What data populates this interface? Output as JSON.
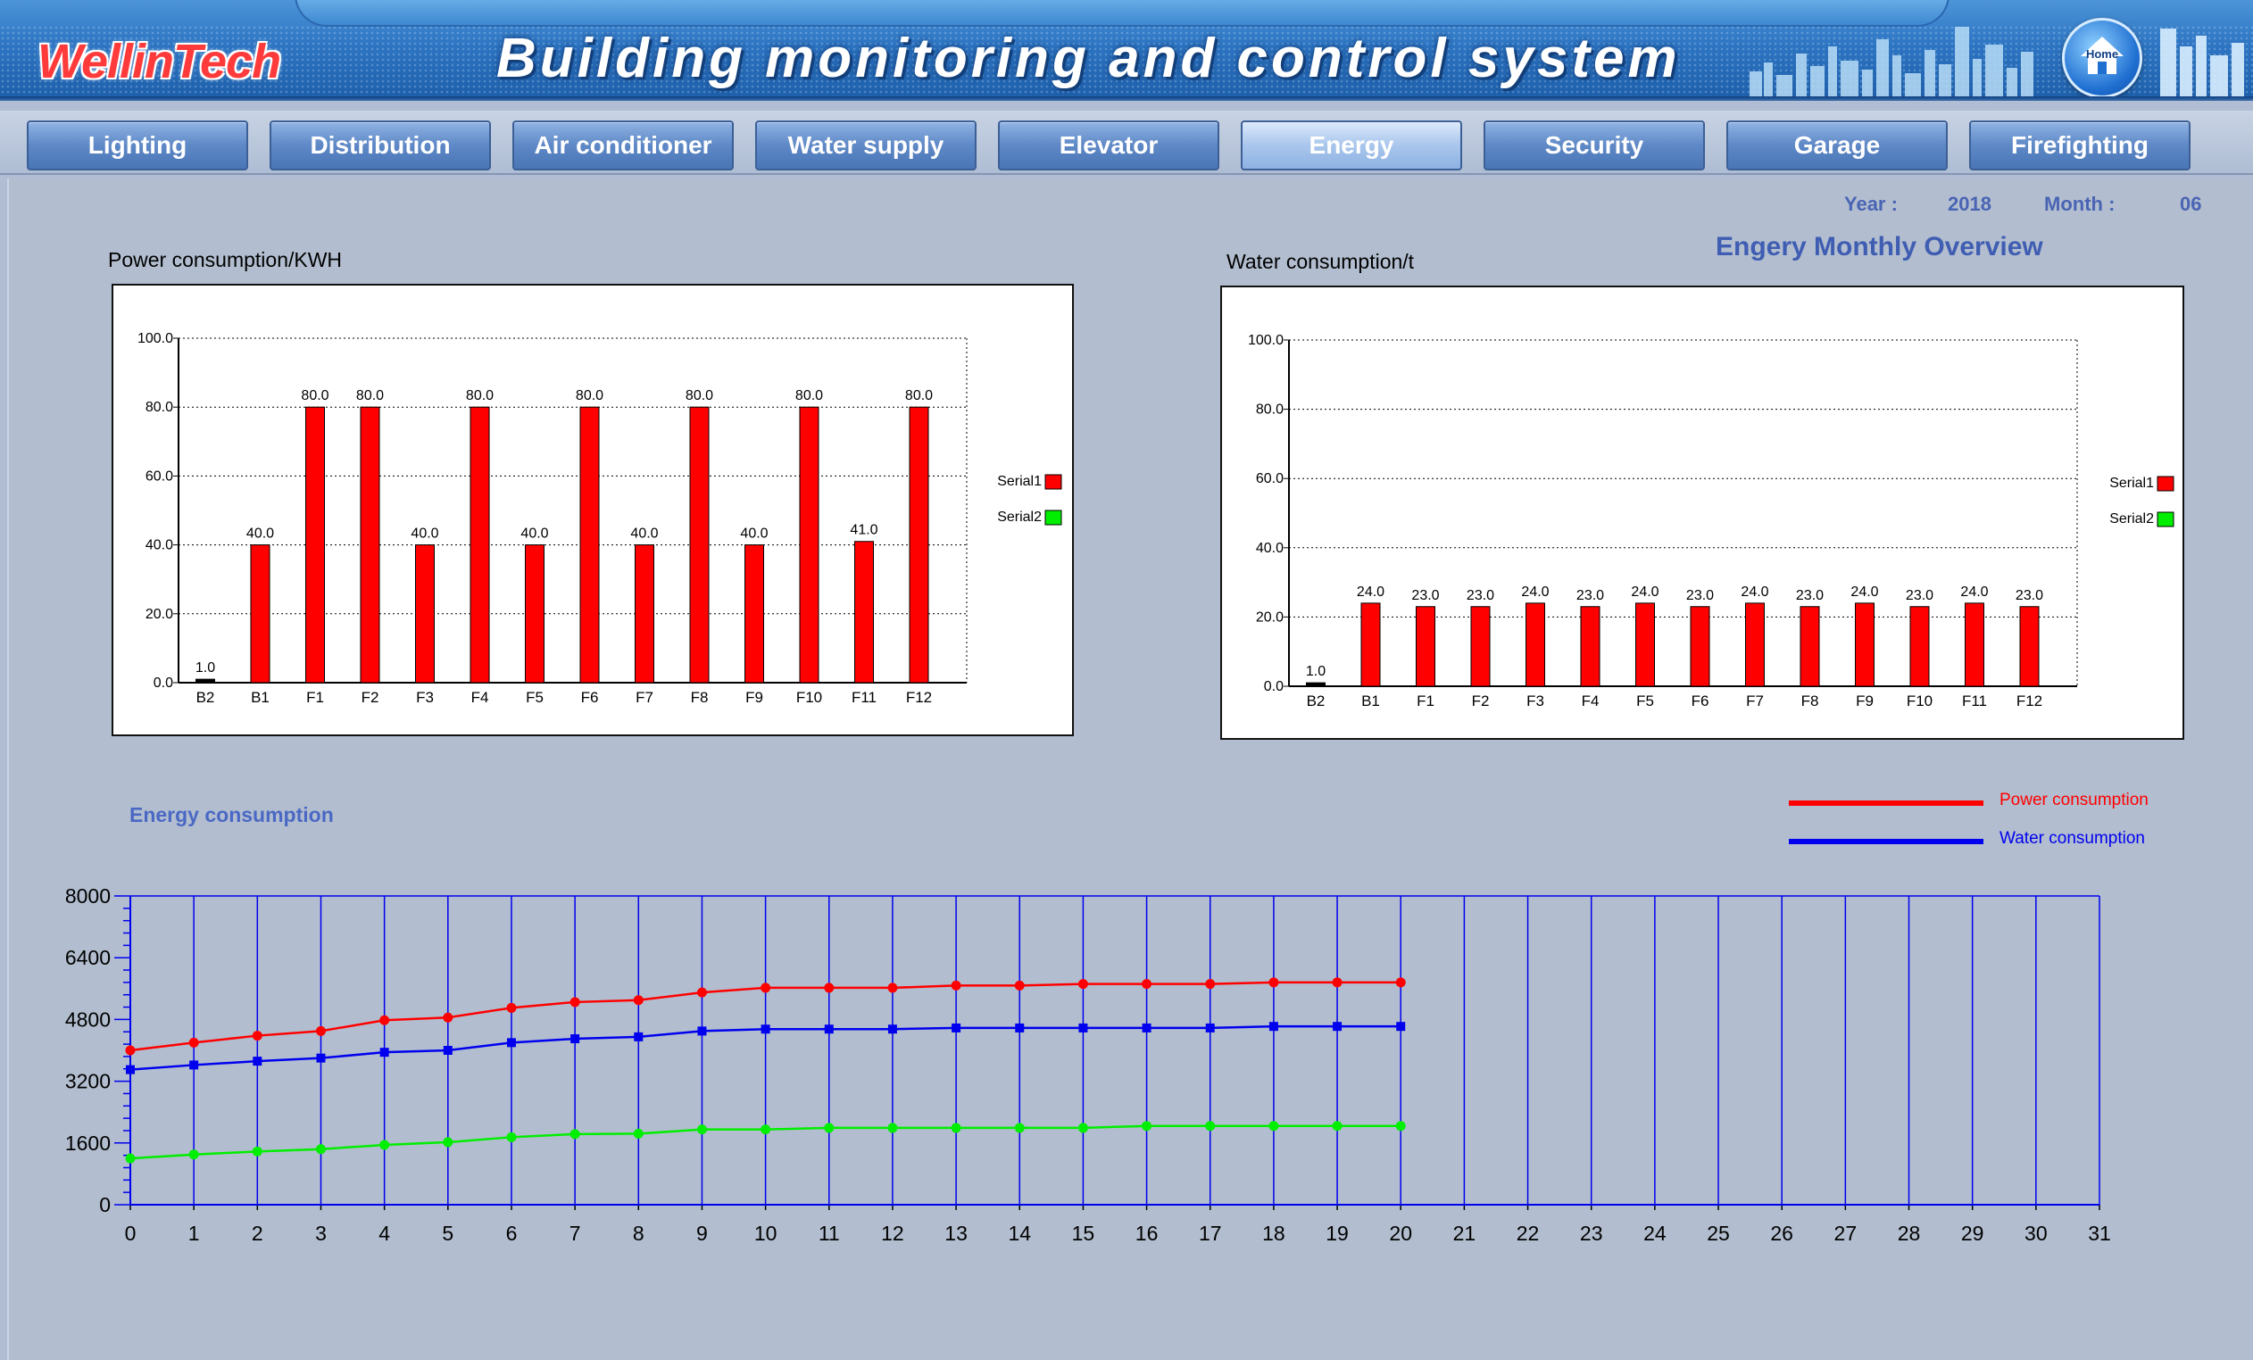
{
  "header": {
    "logo": "WellinTech",
    "title": "Building monitoring and control system",
    "home_label": "Home"
  },
  "nav": {
    "tabs": [
      {
        "label": "Lighting"
      },
      {
        "label": "Distribution"
      },
      {
        "label": "Air conditioner"
      },
      {
        "label": "Water supply"
      },
      {
        "label": "Elevator"
      },
      {
        "label": "Energy",
        "active": true
      },
      {
        "label": "Security"
      },
      {
        "label": "Garage"
      },
      {
        "label": "Firefighting"
      }
    ]
  },
  "meta": {
    "year_label": "Year :",
    "year_value": "2018",
    "month_label": "Month :",
    "month_value": "06"
  },
  "overview_title": "Engery Monthly Overview",
  "energy_title": "Energy consumption",
  "colors": {
    "series1": "#ff0000",
    "series2": "#00ee00",
    "water_line": "#0000ee",
    "accent_text": "#4a64b4"
  },
  "chart_data": [
    {
      "type": "bar",
      "title": "Power consumption/KWH",
      "categories": [
        "B2",
        "B1",
        "F1",
        "F2",
        "F3",
        "F4",
        "F5",
        "F6",
        "F7",
        "F8",
        "F9",
        "F10",
        "F11",
        "F12"
      ],
      "values": [
        1.0,
        40.0,
        80.0,
        80.0,
        40.0,
        80.0,
        40.0,
        80.0,
        40.0,
        80.0,
        40.0,
        80.0,
        41.0,
        80.0
      ],
      "value_labels": [
        "1.0",
        "40.0",
        "80.0",
        "80.0",
        "40.0",
        "80.0",
        "40.0",
        "80.0",
        "40.0",
        "80.0",
        "40.0",
        "80.0",
        "41.0",
        "80.0"
      ],
      "ylim": [
        0,
        100
      ],
      "yticks": [
        "0.0",
        "20.0",
        "40.0",
        "60.0",
        "80.0",
        "100.0"
      ],
      "legend": [
        "Serial1",
        "Serial2"
      ],
      "legend_position": "right",
      "grid": true
    },
    {
      "type": "bar",
      "title": "Water consumption/t",
      "categories": [
        "B2",
        "B1",
        "F1",
        "F2",
        "F3",
        "F4",
        "F5",
        "F6",
        "F7",
        "F8",
        "F9",
        "F10",
        "F11",
        "F12"
      ],
      "values": [
        1.0,
        24.0,
        23.0,
        23.0,
        24.0,
        23.0,
        24.0,
        23.0,
        24.0,
        23.0,
        24.0,
        23.0,
        24.0,
        23.0
      ],
      "value_labels": [
        "1.0",
        "24.0",
        "23.0",
        "23.0",
        "24.0",
        "23.0",
        "24.0",
        "23.0",
        "24.0",
        "23.0",
        "24.0",
        "23.0",
        "24.0",
        "23.0"
      ],
      "ylim": [
        0,
        100
      ],
      "yticks": [
        "0.0",
        "20.0",
        "40.0",
        "60.0",
        "80.0",
        "100.0"
      ],
      "legend": [
        "Serial1",
        "Serial2"
      ],
      "legend_position": "right",
      "grid": true
    },
    {
      "type": "line",
      "title": "Energy consumption",
      "x": [
        0,
        1,
        2,
        3,
        4,
        5,
        6,
        7,
        8,
        9,
        10,
        11,
        12,
        13,
        14,
        15,
        16,
        17,
        18,
        19,
        20
      ],
      "xticks": [
        "0",
        "1",
        "2",
        "3",
        "4",
        "5",
        "6",
        "7",
        "8",
        "9",
        "10",
        "11",
        "12",
        "13",
        "14",
        "15",
        "16",
        "17",
        "18",
        "19",
        "20",
        "21",
        "22",
        "23",
        "24",
        "25",
        "26",
        "27",
        "28",
        "29",
        "30",
        "31"
      ],
      "xlim": [
        0,
        31
      ],
      "ylim": [
        0,
        8000
      ],
      "yticks": [
        "0",
        "1600",
        "3200",
        "4800",
        "6400",
        "8000"
      ],
      "series": [
        {
          "name": "Power consumption",
          "color": "#ff0000",
          "values": [
            4000,
            4200,
            4380,
            4500,
            4780,
            4850,
            5100,
            5250,
            5300,
            5500,
            5620,
            5620,
            5620,
            5680,
            5680,
            5720,
            5720,
            5720,
            5760,
            5760,
            5760
          ]
        },
        {
          "name": "Water consumption",
          "color": "#0000ee",
          "values": [
            3500,
            3620,
            3720,
            3800,
            3950,
            4000,
            4200,
            4300,
            4350,
            4500,
            4550,
            4550,
            4550,
            4580,
            4580,
            4580,
            4580,
            4580,
            4620,
            4620,
            4620
          ]
        },
        {
          "color": "#00ee00",
          "values": [
            1200,
            1300,
            1380,
            1440,
            1550,
            1620,
            1750,
            1830,
            1840,
            1950,
            1950,
            1990,
            1990,
            1990,
            1990,
            1990,
            2040,
            2040,
            2040,
            2040,
            2040
          ]
        }
      ],
      "legend_position": "top-right",
      "grid": true
    }
  ]
}
